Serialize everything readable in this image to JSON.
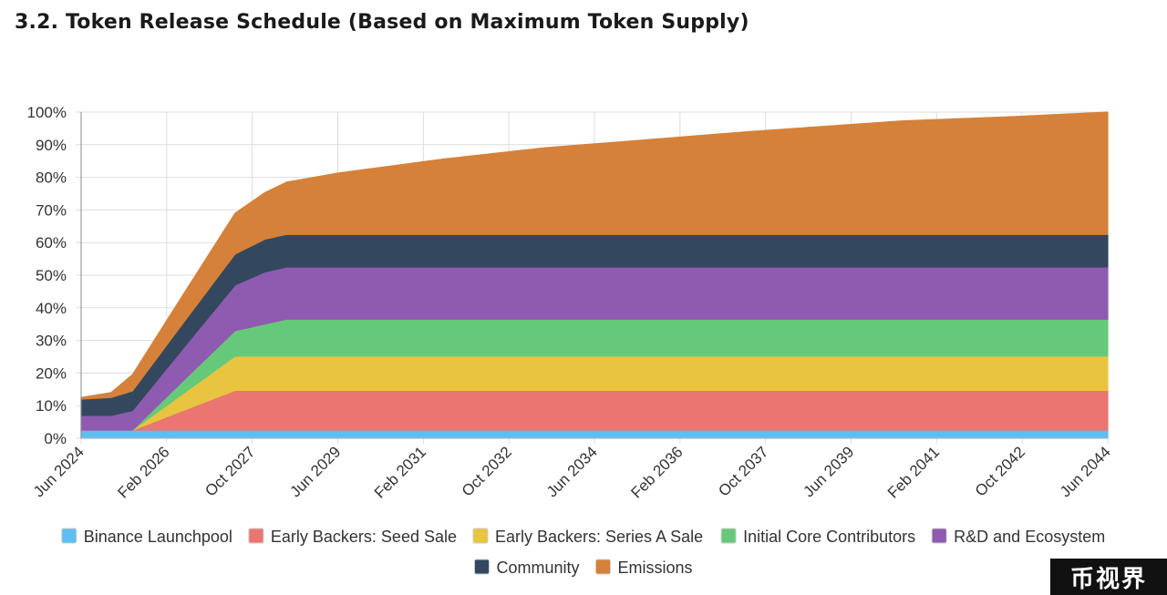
{
  "page": {
    "title": "3.2. Token Release Schedule (Based on Maximum Token Supply)",
    "watermark": "币视界"
  },
  "chart_data": {
    "type": "area",
    "stacked": true,
    "title": "",
    "xlabel": "",
    "ylabel": "",
    "ylim": [
      0,
      100
    ],
    "y_unit": "%",
    "y_ticks": [
      "0%",
      "10%",
      "20%",
      "30%",
      "40%",
      "50%",
      "60%",
      "70%",
      "80%",
      "90%",
      "100%"
    ],
    "x_range": [
      "2024-06",
      "2044-06"
    ],
    "x_ticks": [
      "Jun 2024",
      "Feb 2026",
      "Oct 2027",
      "Jun 2029",
      "Feb 2031",
      "Oct 2032",
      "Jun 2034",
      "Feb 2036",
      "Oct 2037",
      "Jun 2039",
      "Feb 2041",
      "Oct 2042",
      "Jun 2044"
    ],
    "grid": true,
    "legend_position": "bottom",
    "series": [
      {
        "name": "Binance Launchpool",
        "color": "#5fbef0",
        "points": [
          [
            "2024-06",
            2.5
          ],
          [
            "2044-06",
            2.5
          ]
        ]
      },
      {
        "name": "Early Backers: Seed Sale",
        "color": "#ea7672",
        "points": [
          [
            "2024-06",
            0
          ],
          [
            "2025-06",
            0
          ],
          [
            "2027-06",
            12.2
          ],
          [
            "2044-06",
            12.2
          ]
        ]
      },
      {
        "name": "Early Backers: Series A Sale",
        "color": "#e8c440",
        "points": [
          [
            "2024-06",
            0
          ],
          [
            "2025-06",
            0
          ],
          [
            "2027-06",
            10.5
          ],
          [
            "2044-06",
            10.5
          ]
        ]
      },
      {
        "name": "Initial Core Contributors",
        "color": "#66c97a",
        "points": [
          [
            "2024-06",
            0
          ],
          [
            "2025-06",
            0
          ],
          [
            "2026-06",
            4
          ],
          [
            "2027-06",
            7.8
          ],
          [
            "2028-06",
            11.3
          ],
          [
            "2044-06",
            11.3
          ]
        ]
      },
      {
        "name": "R&D and Ecosystem",
        "color": "#8e5bb0",
        "points": [
          [
            "2024-06",
            4.5
          ],
          [
            "2025-01",
            4.5
          ],
          [
            "2025-06",
            6
          ],
          [
            "2027-06",
            14
          ],
          [
            "2028-01",
            16
          ],
          [
            "2028-06",
            16
          ],
          [
            "2044-06",
            16
          ]
        ]
      },
      {
        "name": "Community",
        "color": "#33485e",
        "points": [
          [
            "2024-06",
            5
          ],
          [
            "2025-01",
            5.5
          ],
          [
            "2025-06",
            6
          ],
          [
            "2027-06",
            9.5
          ],
          [
            "2028-01",
            10
          ],
          [
            "2028-06",
            10
          ],
          [
            "2044-06",
            10
          ]
        ]
      },
      {
        "name": "Emissions",
        "color": "#d5813a",
        "points": [
          [
            "2024-06",
            0.5
          ],
          [
            "2025-01",
            1.5
          ],
          [
            "2025-06",
            5
          ],
          [
            "2027-06",
            12.5
          ],
          [
            "2028-01",
            14.3
          ],
          [
            "2028-06",
            16
          ],
          [
            "2029-06",
            18.8
          ],
          [
            "2031-06",
            23
          ],
          [
            "2033-06",
            26.5
          ],
          [
            "2035-06",
            29
          ],
          [
            "2037-06",
            31.5
          ],
          [
            "2040-06",
            34.8
          ],
          [
            "2042-06",
            36
          ],
          [
            "2044-06",
            37.5
          ]
        ]
      }
    ]
  }
}
